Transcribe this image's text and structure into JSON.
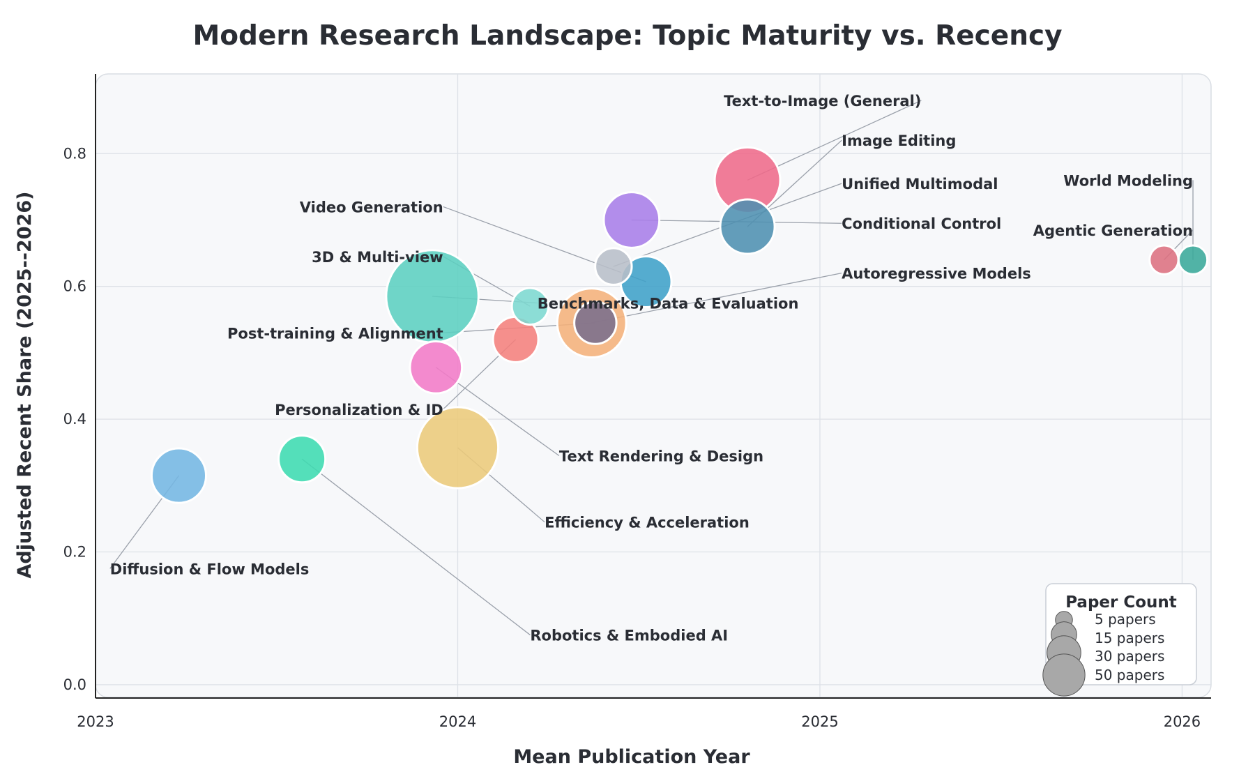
{
  "chart_data": {
    "type": "scatter",
    "title": "Modern Research Landscape: Topic Maturity vs. Recency",
    "xlabel": "Mean Publication Year",
    "ylabel": "Adjusted Recent Share (2025--2026)",
    "xlim": [
      2023.0,
      2026.08
    ],
    "ylim": [
      -0.02,
      0.92
    ],
    "xticks": [
      {
        "value": 2023,
        "label": "2023"
      },
      {
        "value": 2024,
        "label": "2024"
      },
      {
        "value": 2025,
        "label": "2025"
      },
      {
        "value": 2026,
        "label": "2026"
      }
    ],
    "yticks": [
      {
        "value": 0.0,
        "label": "0.0"
      },
      {
        "value": 0.2,
        "label": "0.2"
      },
      {
        "value": 0.4,
        "label": "0.4"
      },
      {
        "value": 0.6,
        "label": "0.6"
      },
      {
        "value": 0.8,
        "label": "0.8"
      }
    ],
    "grid": true,
    "background": "#f7f8fa",
    "points": [
      {
        "label": "Text-to-Image (General)",
        "x": 2024.8,
        "y": 0.76,
        "papers": 28,
        "color": "#ef6a8a",
        "label_x": 2025.28,
        "label_y": 0.88,
        "anchor": "end"
      },
      {
        "label": "Image Editing",
        "x": 2024.8,
        "y": 0.69,
        "papers": 17,
        "color": "#4f8fb0",
        "label_x": 2025.06,
        "label_y": 0.82,
        "anchor": "start"
      },
      {
        "label": "Unified Multimodal",
        "x": 2024.43,
        "y": 0.63,
        "papers": 5,
        "color": "#b8bec8",
        "label_x": 2025.06,
        "label_y": 0.755,
        "anchor": "start"
      },
      {
        "label": "Conditional Control",
        "x": 2024.48,
        "y": 0.7,
        "papers": 18,
        "color": "#a87de8",
        "label_x": 2025.06,
        "label_y": 0.695,
        "anchor": "start"
      },
      {
        "label": "World Modeling",
        "x": 2026.03,
        "y": 0.64,
        "papers": 2,
        "color": "#3aa89a",
        "label_x": 2026.03,
        "label_y": 0.76,
        "anchor": "end"
      },
      {
        "label": "Agentic Generation",
        "x": 2025.95,
        "y": 0.64,
        "papers": 2,
        "color": "#dd7080",
        "label_x": 2026.03,
        "label_y": 0.685,
        "anchor": "end"
      },
      {
        "label": "Video Generation",
        "x": 2024.52,
        "y": 0.607,
        "papers": 14,
        "color": "#3fa0c8",
        "label_x": 2023.96,
        "label_y": 0.72,
        "anchor": "end"
      },
      {
        "label": "3D & Multi-view",
        "x": 2024.2,
        "y": 0.57,
        "papers": 5,
        "color": "#7dd8d0",
        "label_x": 2023.96,
        "label_y": 0.645,
        "anchor": "end"
      },
      {
        "label": "Autoregressive Models",
        "x": 2024.37,
        "y": 0.545,
        "papers": 32,
        "color": "#f5b07a",
        "label_x": 2025.06,
        "label_y": 0.62,
        "anchor": "start"
      },
      {
        "label": "Benchmarks, Data & Evaluation",
        "x": 2023.93,
        "y": 0.585,
        "papers": 66,
        "color": "#5ccfc0",
        "label_x": 2024.22,
        "label_y": 0.575,
        "anchor": "start"
      },
      {
        "label": "Post-training & Alignment",
        "x": 2024.38,
        "y": 0.545,
        "papers": 8,
        "color": "#7a6e8c",
        "label_x": 2023.96,
        "label_y": 0.53,
        "anchor": "end"
      },
      {
        "label": "Personalization & ID",
        "x": 2024.16,
        "y": 0.52,
        "papers": 10,
        "color": "#f5807c",
        "label_x": 2023.96,
        "label_y": 0.415,
        "anchor": "end"
      },
      {
        "label": "Text Rendering & Design",
        "x": 2023.94,
        "y": 0.478,
        "papers": 15,
        "color": "#f37ac7",
        "label_x": 2024.28,
        "label_y": 0.345,
        "anchor": "start"
      },
      {
        "label": "Efficiency & Acceleration",
        "x": 2024.0,
        "y": 0.357,
        "papers": 48,
        "color": "#ecc97a",
        "label_x": 2024.24,
        "label_y": 0.245,
        "anchor": "start"
      },
      {
        "label": "Diffusion & Flow Models",
        "x": 2023.23,
        "y": 0.315,
        "papers": 17,
        "color": "#74b6e3",
        "label_x": 2023.04,
        "label_y": 0.175,
        "anchor": "start"
      },
      {
        "label": "Robotics & Embodied AI",
        "x": 2023.57,
        "y": 0.34,
        "papers": 11,
        "color": "#3ddbb0",
        "label_x": 2024.2,
        "label_y": 0.075,
        "anchor": "start"
      }
    ],
    "legend": {
      "title": "Paper Count",
      "placement": "bottom-right",
      "entries": [
        {
          "label": "5 papers",
          "papers": 5
        },
        {
          "label": "15 papers",
          "papers": 15
        },
        {
          "label": "30 papers",
          "papers": 30
        },
        {
          "label": "50 papers",
          "papers": 50
        }
      ]
    }
  }
}
